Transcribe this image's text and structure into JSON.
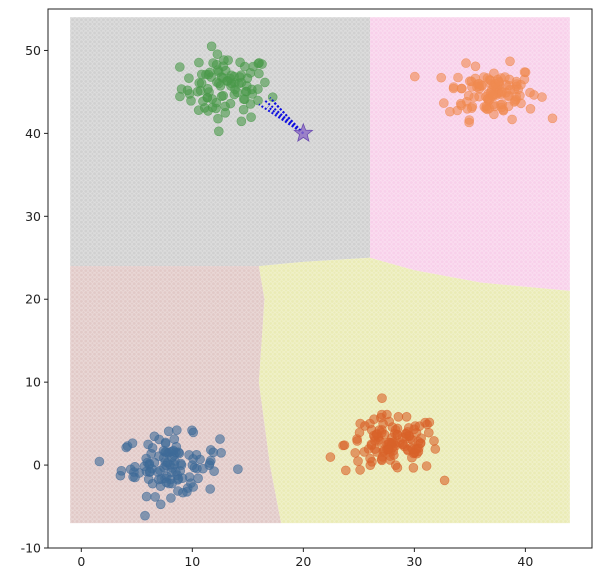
{
  "chart_data": {
    "type": "scatter",
    "title": "",
    "xlabel": "",
    "ylabel": "",
    "xlim": [
      -3,
      46
    ],
    "ylim": [
      -10,
      55
    ],
    "x_ticks": [
      "0",
      "10",
      "20",
      "30",
      "40"
    ],
    "y_ticks": [
      "-10",
      "0",
      "10",
      "20",
      "30",
      "40",
      "50"
    ],
    "grid": false,
    "legend": "none",
    "decision_regions": {
      "x_range": [
        -1,
        44
      ],
      "y_range": [
        -7,
        54
      ],
      "regions": [
        {
          "name": "cluster-green",
          "color": "#c8c8c8",
          "polygon": [
            [
              -1,
              24
            ],
            [
              16,
              24
            ],
            [
              20,
              24.5
            ],
            [
              26,
              25
            ],
            [
              26,
              54
            ],
            [
              -1,
              54
            ]
          ]
        },
        {
          "name": "cluster-orange",
          "color": "#f7c8e6",
          "polygon": [
            [
              26,
              54
            ],
            [
              44,
              54
            ],
            [
              44,
              21
            ],
            [
              36,
              22
            ],
            [
              30,
              23.5
            ],
            [
              26,
              25
            ]
          ]
        },
        {
          "name": "cluster-blue",
          "color": "#dcc0bd",
          "polygon": [
            [
              -1,
              24
            ],
            [
              16,
              24
            ],
            [
              16.5,
              20
            ],
            [
              16,
              10
            ],
            [
              17,
              0
            ],
            [
              18,
              -7
            ],
            [
              -1,
              -7
            ]
          ]
        },
        {
          "name": "cluster-red",
          "color": "#e6e8a8",
          "polygon": [
            [
              18,
              -7
            ],
            [
              44,
              -7
            ],
            [
              44,
              21
            ],
            [
              36,
              22
            ],
            [
              30,
              23.5
            ],
            [
              26,
              25
            ],
            [
              20,
              24.5
            ],
            [
              16,
              24
            ],
            [
              16.5,
              20
            ],
            [
              16,
              10
            ],
            [
              17,
              0
            ]
          ]
        }
      ]
    },
    "series": [
      {
        "color": "#4a9a4a",
        "center": [
          13,
          45.5
        ],
        "spread": [
          2.0,
          2.0
        ],
        "count": 90
      },
      {
        "color": "#f08a50",
        "center": [
          37,
          45
        ],
        "spread": [
          2.0,
          1.6
        ],
        "count": 110
      },
      {
        "color": "#3e6a98",
        "center": [
          8,
          0
        ],
        "spread": [
          2.2,
          1.8
        ],
        "count": 110
      },
      {
        "color": "#d9622a",
        "center": [
          28,
          2.5
        ],
        "spread": [
          2.1,
          1.7
        ],
        "count": 120
      }
    ],
    "query_point": {
      "x": 20,
      "y": 40,
      "color": "#8c6cc4",
      "marker": "star"
    },
    "neighbor_lines": {
      "color": "#1010e0",
      "from": [
        20,
        40
      ],
      "to": [
        [
          16,
          43.5
        ],
        [
          16.5,
          44
        ],
        [
          17,
          44.3
        ],
        [
          17.3,
          43.8
        ],
        [
          16.8,
          43.2
        ]
      ]
    }
  }
}
